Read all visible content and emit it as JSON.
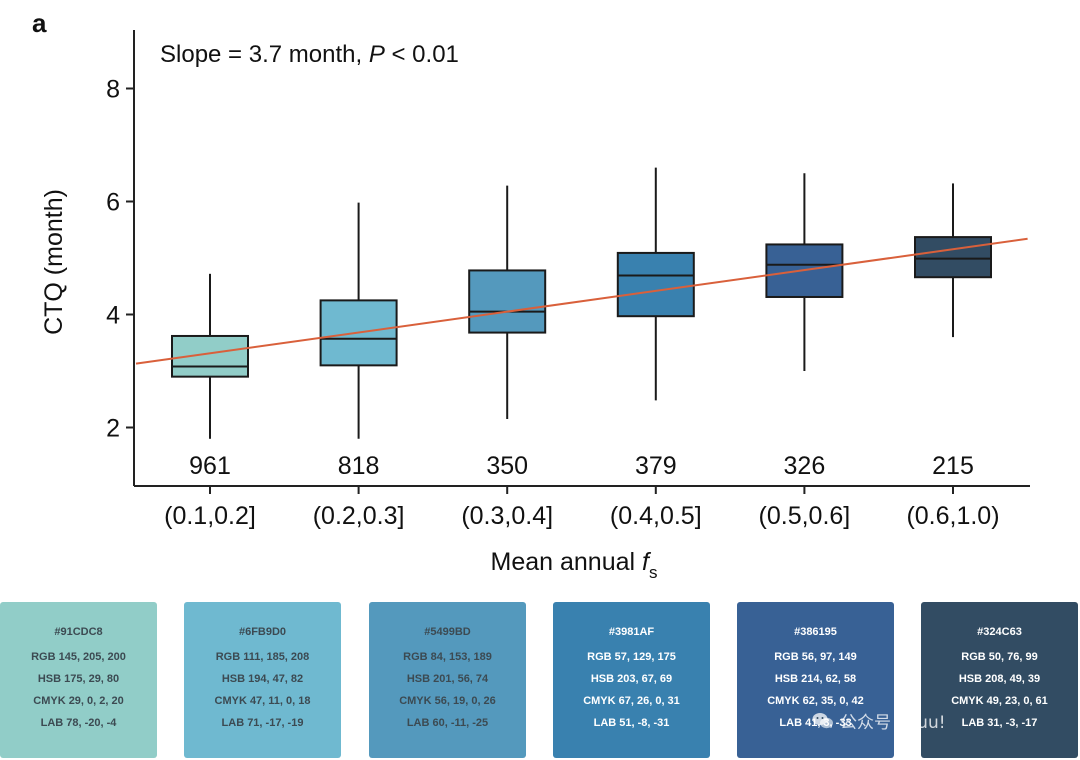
{
  "panel_label": "a",
  "annotation": {
    "text": "Slope = 3.7 month, ",
    "p_label": "P",
    "p_rest": " < 0.01"
  },
  "axes": {
    "ylabel": "CTQ (month)",
    "xlabel_main": "Mean annual ",
    "xlabel_var": "f",
    "xlabel_sub": "s"
  },
  "chart_data": {
    "type": "box",
    "categories": [
      "(0.1,0.2]",
      "(0.2,0.3]",
      "(0.3,0.4]",
      "(0.4,0.5]",
      "(0.5,0.6]",
      "(0.6,1.0)"
    ],
    "counts": [
      "961",
      "818",
      "350",
      "379",
      "326",
      "215"
    ],
    "boxes": [
      {
        "whisker_low": 1.8,
        "q1": 2.9,
        "median": 3.08,
        "q3": 3.62,
        "whisker_high": 4.72,
        "color": "#91CDC8"
      },
      {
        "whisker_low": 1.8,
        "q1": 3.1,
        "median": 3.57,
        "q3": 4.25,
        "whisker_high": 5.98,
        "color": "#6FB9D0"
      },
      {
        "whisker_low": 2.15,
        "q1": 3.68,
        "median": 4.05,
        "q3": 4.78,
        "whisker_high": 6.28,
        "color": "#5499BD"
      },
      {
        "whisker_low": 2.48,
        "q1": 3.97,
        "median": 4.69,
        "q3": 5.09,
        "whisker_high": 6.6,
        "color": "#3981AF"
      },
      {
        "whisker_low": 3.0,
        "q1": 4.31,
        "median": 4.88,
        "q3": 5.24,
        "whisker_high": 6.5,
        "color": "#386195"
      },
      {
        "whisker_low": 3.6,
        "q1": 4.66,
        "median": 4.99,
        "q3": 5.37,
        "whisker_high": 6.32,
        "color": "#324C63"
      }
    ],
    "trend_line": {
      "x_start": 0.0,
      "y_start": 3.13,
      "x_end": 6.0,
      "y_end": 5.34,
      "color": "#d9603b"
    },
    "ylim": [
      1.0,
      9.0
    ],
    "yticks": [
      2,
      4,
      6,
      8
    ],
    "grid": false
  },
  "palette": [
    {
      "hex": "#91CDC8",
      "rgb": "RGB 145, 205, 200",
      "hsb": "HSB 175, 29, 80",
      "cmyk": "CMYK 29, 0, 2, 20",
      "lab": "LAB 78, -20, -4",
      "bg": "#91CDC8",
      "text": "dark"
    },
    {
      "hex": "#6FB9D0",
      "rgb": "RGB 111, 185, 208",
      "hsb": "HSB 194, 47, 82",
      "cmyk": "CMYK 47, 11, 0, 18",
      "lab": "LAB 71, -17, -19",
      "bg": "#6FB9D0",
      "text": "dark"
    },
    {
      "hex": "#5499BD",
      "rgb": "RGB 84, 153, 189",
      "hsb": "HSB 201, 56, 74",
      "cmyk": "CMYK 56, 19, 0, 26",
      "lab": "LAB 60, -11, -25",
      "bg": "#5499BD",
      "text": "dark"
    },
    {
      "hex": "#3981AF",
      "rgb": "RGB 57, 129, 175",
      "hsb": "HSB 203, 67, 69",
      "cmyk": "CMYK 67, 26, 0, 31",
      "lab": "LAB 51, -8, -31",
      "bg": "#3981AF",
      "text": "light"
    },
    {
      "hex": "#386195",
      "rgb": "RGB 56, 97, 149",
      "hsb": "HSB 214, 62, 58",
      "cmyk": "CMYK 62, 35, 0, 42",
      "lab": "LAB 41, 3, -33",
      "bg": "#386195",
      "text": "light"
    },
    {
      "hex": "#324C63",
      "rgb": "RGB 50, 76, 99",
      "hsb": "HSB 208, 49, 39",
      "cmyk": "CMYK 49, 23, 0, 61",
      "lab": "LAB 31, -3, -17",
      "bg": "#324C63",
      "text": "light"
    }
  ],
  "watermark": {
    "text": "公众号 · Puu!",
    "icon": "wechat-icon"
  }
}
